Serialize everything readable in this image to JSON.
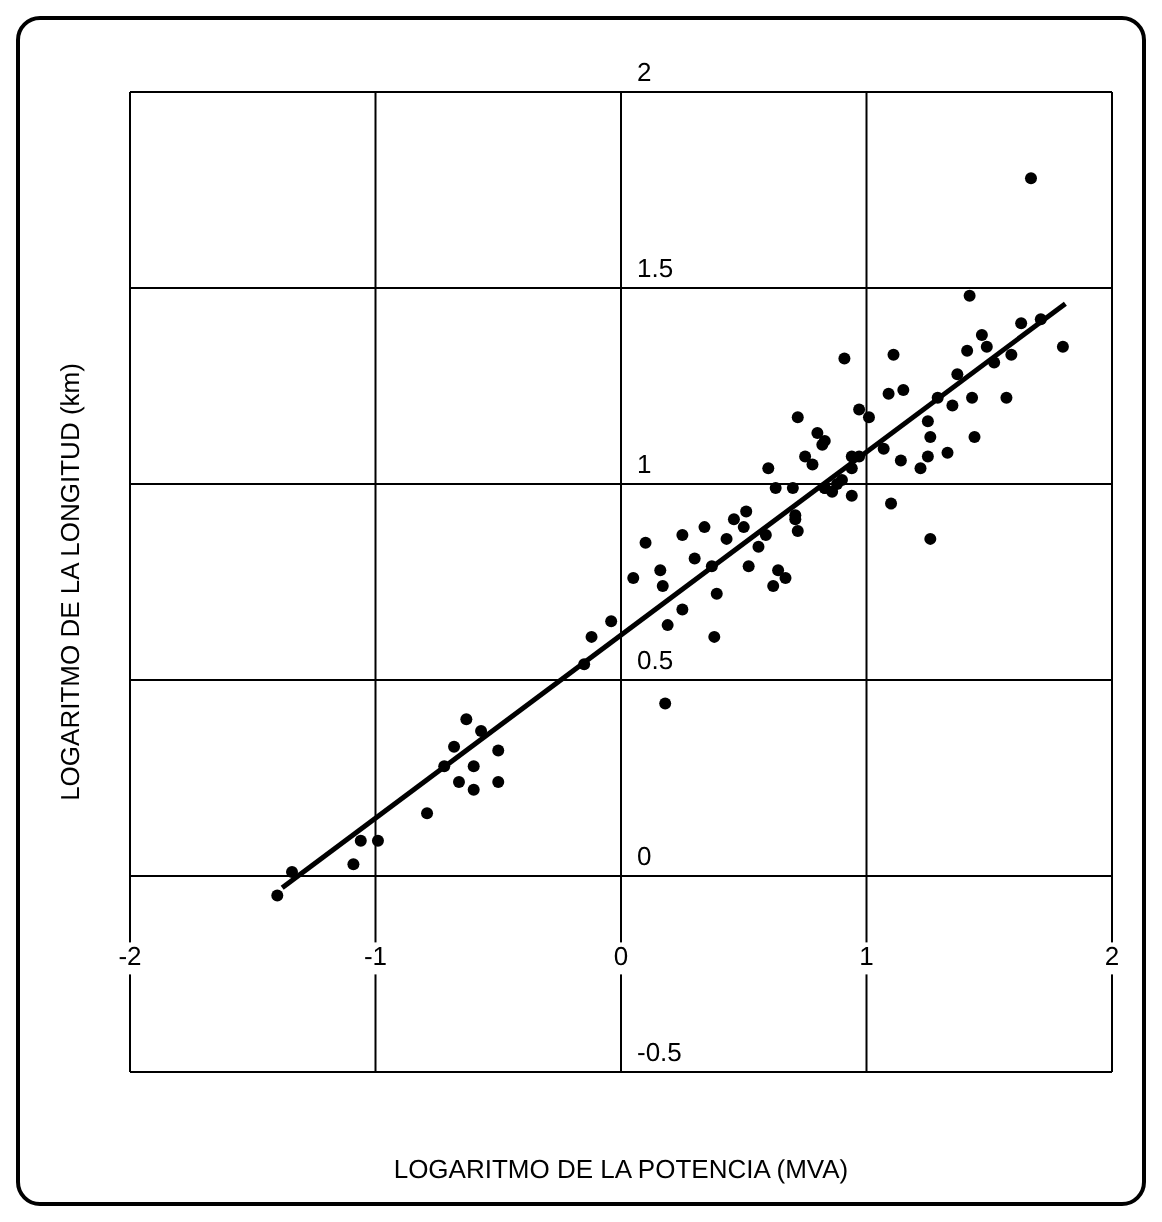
{
  "chart_data": {
    "type": "scatter",
    "xlabel": "LOGARITMO DE LA POTENCIA (MVA)",
    "ylabel": "LOGARITMO DE LA LONGITUD (km)",
    "xlim": [
      -2,
      2
    ],
    "ylim": [
      -0.5,
      2
    ],
    "xticks": [
      -2,
      -1,
      0,
      1,
      2
    ],
    "yticks": [
      -0.5,
      0,
      0.5,
      1,
      1.5,
      2
    ],
    "grid": true,
    "marker": "circle",
    "series": [
      {
        "type": "scatter",
        "color": "#000000",
        "x": [
          -1.4,
          -1.34,
          -1.09,
          -1.06,
          -0.99,
          -0.79,
          -0.72,
          -0.68,
          -0.66,
          -0.63,
          -0.6,
          -0.6,
          -0.57,
          -0.5,
          -0.5,
          -0.15,
          -0.12,
          -0.04,
          0.05,
          0.1,
          0.16,
          0.17,
          0.19,
          0.18,
          0.25,
          0.25,
          0.3,
          0.34,
          0.37,
          0.38,
          0.39,
          0.43,
          0.46,
          0.5,
          0.51,
          0.52,
          0.56,
          0.59,
          0.62,
          0.64,
          0.67,
          0.7,
          0.71,
          0.6,
          0.63,
          0.72,
          0.78,
          0.83,
          0.86,
          0.9,
          0.94,
          0.97,
          0.82,
          1.67,
          1.42,
          1.8,
          0.91,
          1.11,
          1.09,
          1.15,
          0.72,
          0.97,
          1.01,
          0.8,
          0.83,
          0.75,
          0.94,
          1.1,
          1.26,
          1.07,
          1.14,
          1.22,
          1.25,
          1.26,
          1.33,
          1.35,
          1.37,
          1.43,
          1.44,
          1.41,
          1.47,
          1.49,
          1.52,
          1.57,
          1.59,
          1.63,
          1.71,
          0.83,
          0.88,
          0.94,
          0.71,
          1.29,
          1.25
        ],
        "values": [
          -0.05,
          0.01,
          0.03,
          0.09,
          0.09,
          0.16,
          0.28,
          0.33,
          0.24,
          0.4,
          0.28,
          0.22,
          0.37,
          0.32,
          0.24,
          0.54,
          0.61,
          0.65,
          0.76,
          0.85,
          0.78,
          0.74,
          0.64,
          0.44,
          0.68,
          0.87,
          0.81,
          0.89,
          0.79,
          0.61,
          0.72,
          0.86,
          0.91,
          0.89,
          0.93,
          0.79,
          0.84,
          0.87,
          0.74,
          0.78,
          0.76,
          0.99,
          0.91,
          1.04,
          0.99,
          0.88,
          1.05,
          0.99,
          0.98,
          1.01,
          1.04,
          1.07,
          1.1,
          1.78,
          1.48,
          1.35,
          1.32,
          1.33,
          1.23,
          1.24,
          1.17,
          1.19,
          1.17,
          1.13,
          1.11,
          1.07,
          1.07,
          0.95,
          0.86,
          1.09,
          1.06,
          1.04,
          1.07,
          1.12,
          1.08,
          1.2,
          1.28,
          1.22,
          1.12,
          1.34,
          1.38,
          1.35,
          1.31,
          1.22,
          1.33,
          1.41,
          1.42,
          0.99,
          1.0,
          0.97,
          0.92,
          1.22,
          1.16
        ]
      },
      {
        "type": "line",
        "color": "#000000",
        "marker": "none",
        "x": [
          -1.38,
          1.81
        ],
        "values": [
          -0.03,
          1.46
        ]
      }
    ]
  }
}
